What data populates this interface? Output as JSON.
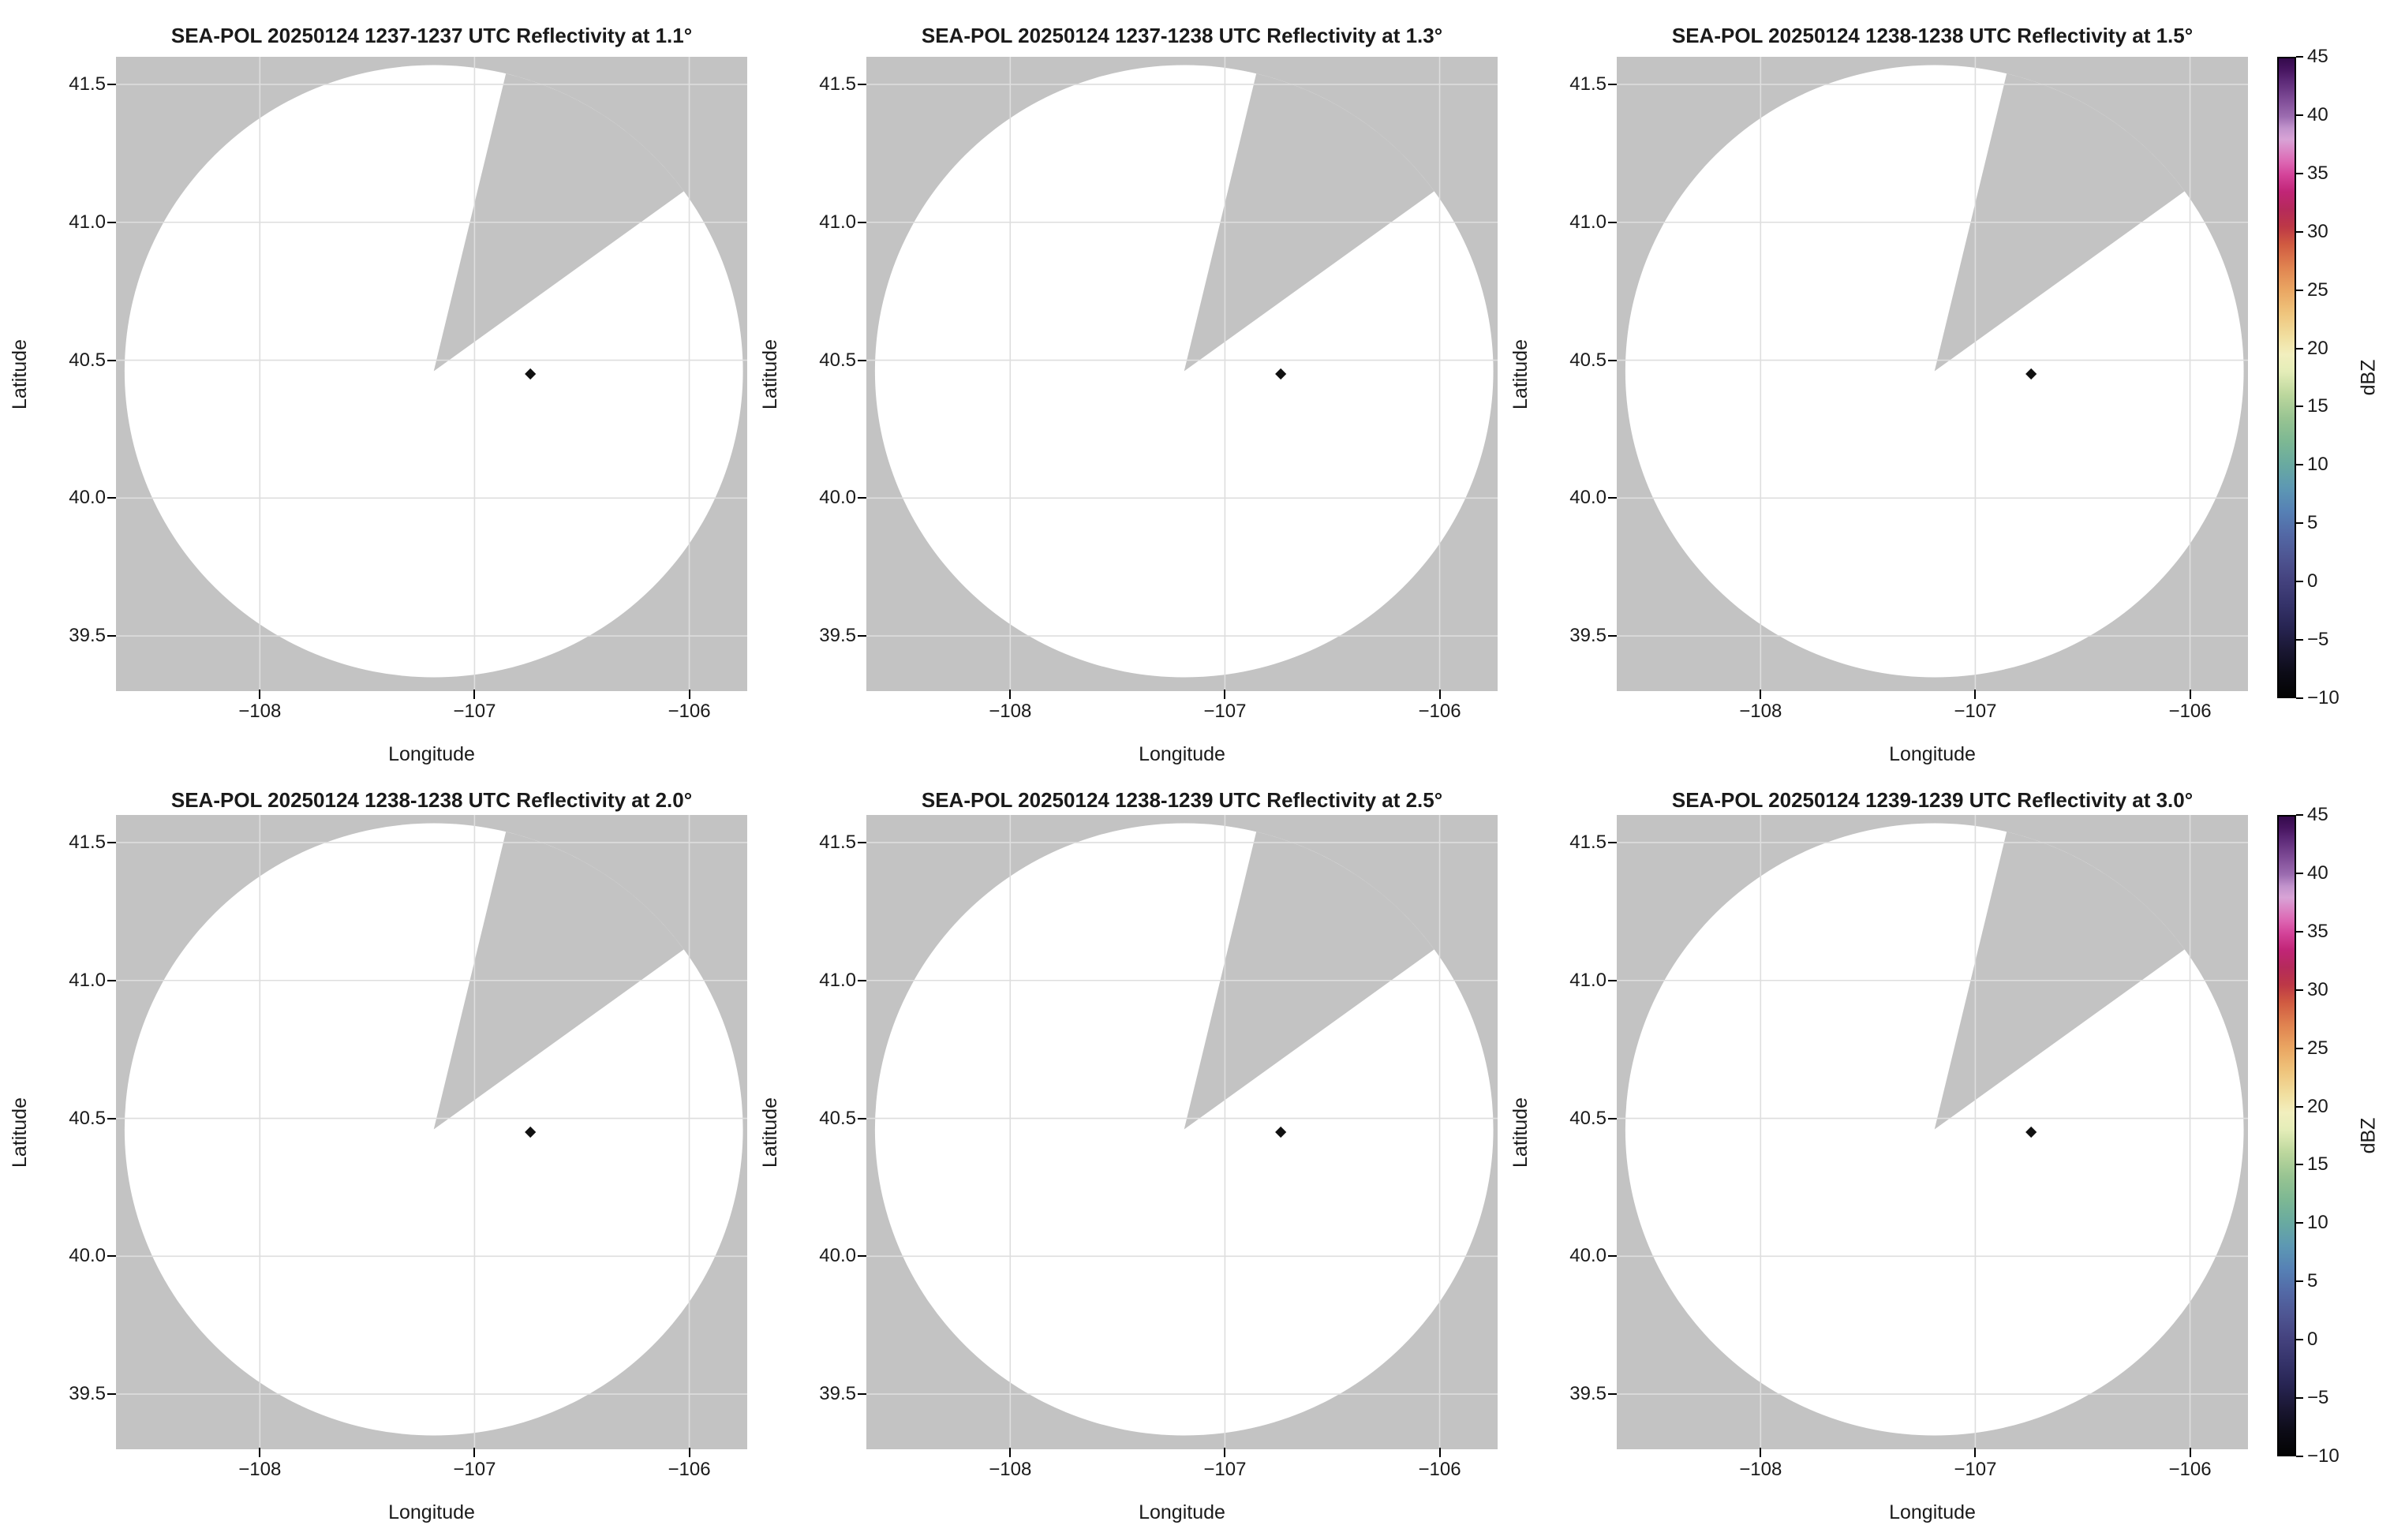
{
  "figure": {
    "background": "#ffffff",
    "panel_bg": "#c3c3c3",
    "coverage_fill": "#ffffff",
    "grid_color": "#dedede",
    "frame_color": "#000000",
    "marker_color": "#111111"
  },
  "panels": [
    {
      "title": "SEA-POL 20250124 1237-1237 UTC Reflectivity at 1.1°"
    },
    {
      "title": "SEA-POL 20250124 1237-1238 UTC Reflectivity at 1.3°"
    },
    {
      "title": "SEA-POL 20250124 1238-1238 UTC Reflectivity at 1.5°"
    },
    {
      "title": "SEA-POL 20250124 1238-1238 UTC Reflectivity at 2.0°"
    },
    {
      "title": "SEA-POL 20250124 1238-1239 UTC Reflectivity at 2.5°"
    },
    {
      "title": "SEA-POL 20250124 1239-1239 UTC Reflectivity at 3.0°"
    }
  ],
  "axes": {
    "xlabel": "Longitude",
    "ylabel": "Latitude",
    "xtick_labels": [
      "−108",
      "−107",
      "−106"
    ],
    "ytick_labels": [
      "41.5",
      "41.0",
      "40.5",
      "40.0",
      "39.5"
    ]
  },
  "colorbar": {
    "label": "dBZ",
    "tick_labels": [
      "45",
      "40",
      "35",
      "30",
      "25",
      "20",
      "15",
      "10",
      "5",
      "0",
      "−5",
      "−10"
    ],
    "gradient": [
      [
        0.0,
        "#030303"
      ],
      [
        0.036,
        "#0c0b16"
      ],
      [
        0.073,
        "#1a1733"
      ],
      [
        0.109,
        "#272452"
      ],
      [
        0.145,
        "#35336a"
      ],
      [
        0.182,
        "#44427e"
      ],
      [
        0.218,
        "#4e5592"
      ],
      [
        0.255,
        "#5369a6"
      ],
      [
        0.291,
        "#5681b5"
      ],
      [
        0.327,
        "#5d98b3"
      ],
      [
        0.364,
        "#69aaa0"
      ],
      [
        0.4,
        "#7db893"
      ],
      [
        0.436,
        "#98c492"
      ],
      [
        0.473,
        "#bcd79d"
      ],
      [
        0.509,
        "#e4edb8"
      ],
      [
        0.536,
        "#f2efbe"
      ],
      [
        0.564,
        "#f1dfa0"
      ],
      [
        0.6,
        "#efc57d"
      ],
      [
        0.636,
        "#eaa763"
      ],
      [
        0.673,
        "#e08350"
      ],
      [
        0.709,
        "#d05a41"
      ],
      [
        0.736,
        "#bd3846"
      ],
      [
        0.764,
        "#b52a5b"
      ],
      [
        0.791,
        "#c12577"
      ],
      [
        0.818,
        "#d4449a"
      ],
      [
        0.836,
        "#dc64b1"
      ],
      [
        0.855,
        "#db84c4"
      ],
      [
        0.873,
        "#d8a3d6"
      ],
      [
        0.891,
        "#c193cc"
      ],
      [
        0.909,
        "#9c6cb0"
      ],
      [
        0.936,
        "#7e4b96"
      ],
      [
        0.964,
        "#5d2a78"
      ],
      [
        0.982,
        "#471560"
      ],
      [
        1.0,
        "#340a4c"
      ]
    ]
  },
  "chart_data": {
    "type": "heatmap",
    "description": "2x3 grid of SEA-POL radar PPI reflectivity maps on lat/lon axes. Every scan shows an echo-free (all values below -10 dBZ, rendered white) circular coverage area on a gray no-data background, with a gray missing-data sector extending north-northeast from the scan center and a small black diamond marking a site east of center.",
    "scans": [
      {
        "radar": "SEA-POL",
        "date": "20250124",
        "time_utc": "1237-1237",
        "elevation_deg": 1.1
      },
      {
        "radar": "SEA-POL",
        "date": "20250124",
        "time_utc": "1237-1238",
        "elevation_deg": 1.3
      },
      {
        "radar": "SEA-POL",
        "date": "20250124",
        "time_utc": "1238-1238",
        "elevation_deg": 1.5
      },
      {
        "radar": "SEA-POL",
        "date": "20250124",
        "time_utc": "1238-1238",
        "elevation_deg": 2.0
      },
      {
        "radar": "SEA-POL",
        "date": "20250124",
        "time_utc": "1238-1239",
        "elevation_deg": 2.5
      },
      {
        "radar": "SEA-POL",
        "date": "20250124",
        "time_utc": "1239-1239",
        "elevation_deg": 3.0
      }
    ],
    "xlabel": "Longitude",
    "ylabel": "Latitude",
    "xlim": [
      -108.67,
      -105.73
    ],
    "ylim": [
      39.3,
      41.6
    ],
    "xticks": [
      -108,
      -107,
      -106
    ],
    "yticks": [
      41.5,
      41.0,
      40.5,
      40.0,
      39.5
    ],
    "grid": true,
    "coverage_center_lonlat": [
      -107.19,
      40.46
    ],
    "coverage_radius": {
      "lon_deg": 1.44,
      "lat_deg": 1.11
    },
    "missing_sector_azimuth_deg": [
      13.5,
      54.0
    ],
    "marker_lonlat": [
      -106.74,
      40.45
    ],
    "colorbar": {
      "label": "dBZ",
      "min": -10,
      "max": 45,
      "ticks": [
        45,
        40,
        35,
        30,
        25,
        20,
        15,
        10,
        5,
        0,
        -5,
        -10
      ]
    }
  }
}
